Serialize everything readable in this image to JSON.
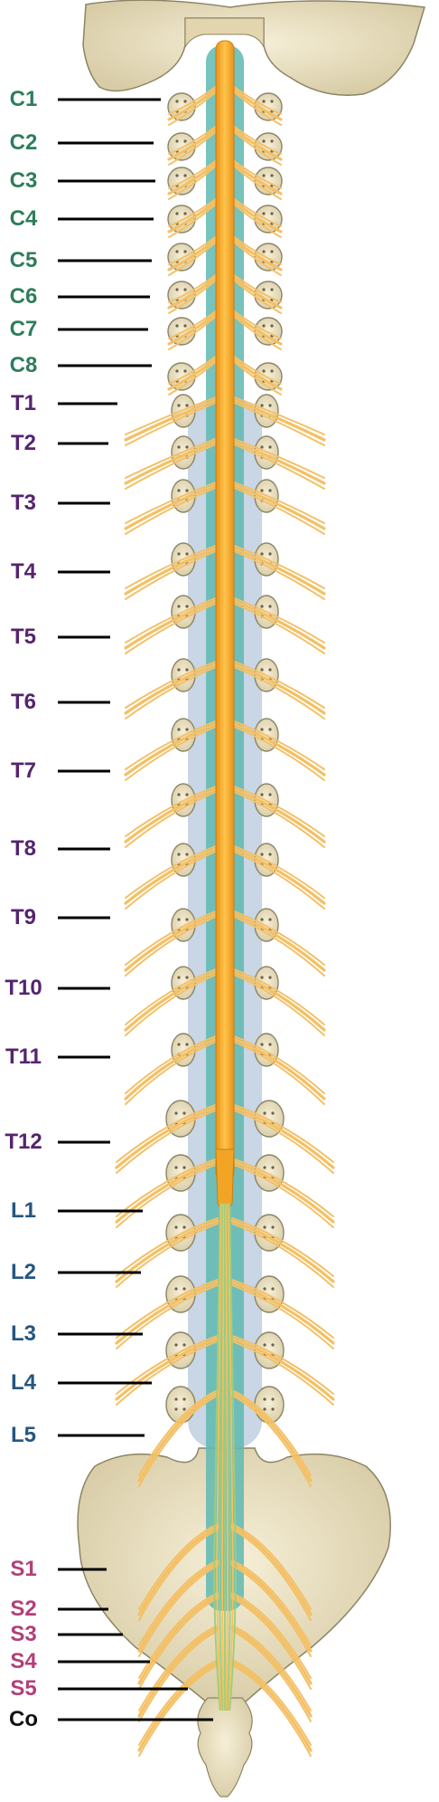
{
  "colors": {
    "cervical": "#2e7d5b",
    "thoracic": "#55246e",
    "lumbar": "#26567f",
    "sacral": "#b23f79",
    "coccygeal": "#111111",
    "cord": "#f2a524",
    "nerve": "#f4c065",
    "csf": "#5fb8b1",
    "bone": "#eae1c3",
    "bone_edge": "#8c8465",
    "dura": "#b6c8dc"
  },
  "levels": [
    {
      "label": "C1",
      "region": "cervical"
    },
    {
      "label": "C2",
      "region": "cervical"
    },
    {
      "label": "C3",
      "region": "cervical"
    },
    {
      "label": "C4",
      "region": "cervical"
    },
    {
      "label": "C5",
      "region": "cervical"
    },
    {
      "label": "C6",
      "region": "cervical"
    },
    {
      "label": "C7",
      "region": "cervical"
    },
    {
      "label": "C8",
      "region": "cervical"
    },
    {
      "label": "T1",
      "region": "thoracic"
    },
    {
      "label": "T2",
      "region": "thoracic"
    },
    {
      "label": "T3",
      "region": "thoracic"
    },
    {
      "label": "T4",
      "region": "thoracic"
    },
    {
      "label": "T5",
      "region": "thoracic"
    },
    {
      "label": "T6",
      "region": "thoracic"
    },
    {
      "label": "T7",
      "region": "thoracic"
    },
    {
      "label": "T8",
      "region": "thoracic"
    },
    {
      "label": "T9",
      "region": "thoracic"
    },
    {
      "label": "T10",
      "region": "thoracic"
    },
    {
      "label": "T11",
      "region": "thoracic"
    },
    {
      "label": "T12",
      "region": "thoracic"
    },
    {
      "label": "L1",
      "region": "lumbar"
    },
    {
      "label": "L2",
      "region": "lumbar"
    },
    {
      "label": "L3",
      "region": "lumbar"
    },
    {
      "label": "L4",
      "region": "lumbar"
    },
    {
      "label": "L5",
      "region": "lumbar"
    },
    {
      "label": "S1",
      "region": "sacral"
    },
    {
      "label": "S2",
      "region": "sacral"
    },
    {
      "label": "S3",
      "region": "sacral"
    },
    {
      "label": "S4",
      "region": "sacral"
    },
    {
      "label": "S5",
      "region": "sacral"
    },
    {
      "label": "Co",
      "region": "coccygeal"
    }
  ]
}
